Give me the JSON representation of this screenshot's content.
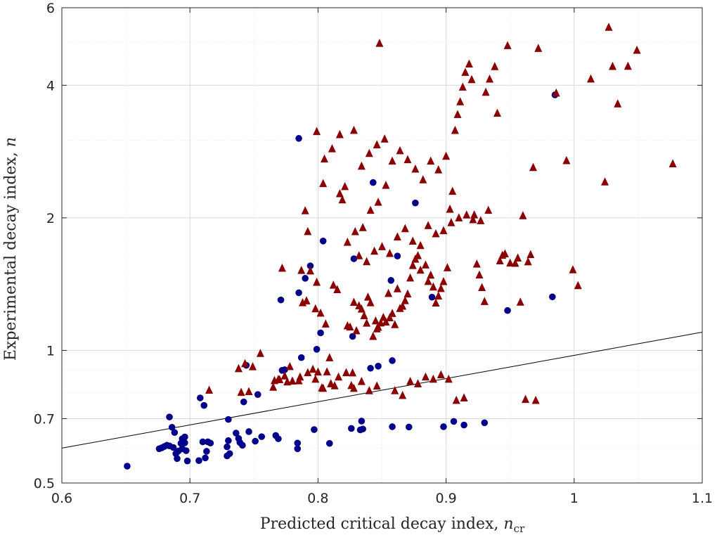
{
  "chart_data": {
    "type": "scatter",
    "title": "",
    "xlabel": "Predicted critical decay index, ",
    "xlabel_symbol": "n",
    "xlabel_subscript": "cr",
    "ylabel": "Experimental decay index, ",
    "ylabel_symbol": "n",
    "xlim": [
      0.6,
      1.1
    ],
    "ylim": [
      0.5,
      6
    ],
    "yscale": "log",
    "grid": true,
    "x_ticks": [
      0.6,
      0.7,
      0.8,
      0.9,
      1.0,
      1.1
    ],
    "x_tick_labels": [
      "0.6",
      "0.7",
      "0.8",
      "0.9",
      "1",
      "1.1"
    ],
    "y_ticks": [
      0.5,
      0.7,
      1,
      2,
      4,
      6
    ],
    "y_tick_labels": [
      "0.5",
      "0.7",
      "1",
      "2",
      "4",
      "6"
    ],
    "reference_line": {
      "x": [
        0.6,
        1.1
      ],
      "y": [
        0.6,
        1.1
      ],
      "color": "#000000"
    },
    "series": [
      {
        "marker": "circle",
        "color": "#00008b",
        "points": [
          [
            0.651,
            0.546
          ],
          [
            0.676,
            0.598
          ],
          [
            0.678,
            0.601
          ],
          [
            0.68,
            0.605
          ],
          [
            0.682,
            0.609
          ],
          [
            0.684,
            0.607
          ],
          [
            0.684,
            0.706
          ],
          [
            0.686,
            0.669
          ],
          [
            0.687,
            0.602
          ],
          [
            0.688,
            0.651
          ],
          [
            0.689,
            0.583
          ],
          [
            0.69,
            0.568
          ],
          [
            0.691,
            0.591
          ],
          [
            0.693,
            0.615
          ],
          [
            0.694,
            0.598
          ],
          [
            0.694,
            0.63
          ],
          [
            0.696,
            0.636
          ],
          [
            0.696,
            0.617
          ],
          [
            0.697,
            0.592
          ],
          [
            0.698,
            0.561
          ],
          [
            0.707,
            0.562
          ],
          [
            0.708,
            0.78
          ],
          [
            0.71,
            0.62
          ],
          [
            0.711,
            0.75
          ],
          [
            0.712,
            0.57
          ],
          [
            0.713,
            0.59
          ],
          [
            0.714,
            0.62
          ],
          [
            0.716,
            0.616
          ],
          [
            0.729,
            0.576
          ],
          [
            0.729,
            0.604
          ],
          [
            0.73,
            0.697
          ],
          [
            0.73,
            0.624
          ],
          [
            0.731,
            0.583
          ],
          [
            0.736,
            0.649
          ],
          [
            0.738,
            0.631
          ],
          [
            0.739,
            0.618
          ],
          [
            0.741,
            0.609
          ],
          [
            0.742,
            0.764
          ],
          [
            0.744,
            0.925
          ],
          [
            0.746,
            0.654
          ],
          [
            0.751,
            0.622
          ],
          [
            0.753,
            0.794
          ],
          [
            0.756,
            0.637
          ],
          [
            0.767,
            0.641
          ],
          [
            0.769,
            0.63
          ],
          [
            0.771,
            1.302
          ],
          [
            0.772,
            0.901
          ],
          [
            0.774,
            0.904
          ],
          [
            0.784,
            0.616
          ],
          [
            0.784,
            0.598
          ],
          [
            0.785,
            1.352
          ],
          [
            0.785,
            3.03
          ],
          [
            0.787,
            0.963
          ],
          [
            0.79,
            1.458
          ],
          [
            0.794,
            1.556
          ],
          [
            0.797,
            0.661
          ],
          [
            0.799,
            1.006
          ],
          [
            0.802,
            1.096
          ],
          [
            0.804,
            1.772
          ],
          [
            0.809,
            0.615
          ],
          [
            0.826,
            0.665
          ],
          [
            0.827,
            1.076
          ],
          [
            0.828,
            1.615
          ],
          [
            0.833,
            0.66
          ],
          [
            0.834,
            0.691
          ],
          [
            0.835,
            0.663
          ],
          [
            0.841,
            0.911
          ],
          [
            0.843,
            2.406
          ],
          [
            0.847,
            0.921
          ],
          [
            0.857,
            1.442
          ],
          [
            0.858,
            0.671
          ],
          [
            0.858,
            0.948
          ],
          [
            0.862,
            1.638
          ],
          [
            0.871,
            0.67
          ],
          [
            0.876,
            2.162
          ],
          [
            0.889,
            1.321
          ],
          [
            0.898,
            0.671
          ],
          [
            0.906,
            0.69
          ],
          [
            0.914,
            0.677
          ],
          [
            0.93,
            0.685
          ],
          [
            0.948,
            1.232
          ],
          [
            0.983,
            1.323
          ],
          [
            0.985,
            3.804
          ]
        ]
      },
      {
        "marker": "triangle",
        "color": "#8b0000",
        "points": [
          [
            0.715,
            0.812
          ],
          [
            0.738,
            0.909
          ],
          [
            0.74,
            0.803
          ],
          [
            0.743,
            0.933
          ],
          [
            0.746,
            0.806
          ],
          [
            0.749,
            0.918
          ],
          [
            0.755,
            0.984
          ],
          [
            0.765,
            0.825
          ],
          [
            0.766,
            0.854
          ],
          [
            0.769,
            0.859
          ],
          [
            0.77,
            0.858
          ],
          [
            0.772,
            1.537
          ],
          [
            0.774,
            0.875
          ],
          [
            0.776,
            0.848
          ],
          [
            0.778,
            0.919
          ],
          [
            0.78,
            0.852
          ],
          [
            0.785,
            0.853
          ],
          [
            0.787,
            1.519
          ],
          [
            0.788,
            1.283
          ],
          [
            0.79,
            2.075
          ],
          [
            0.791,
            1.296
          ],
          [
            0.792,
            1.861
          ],
          [
            0.794,
            1.515
          ],
          [
            0.796,
            0.906
          ],
          [
            0.798,
            1.243
          ],
          [
            0.799,
            1.428
          ],
          [
            0.8,
            0.893
          ],
          [
            0.802,
            1.215
          ],
          [
            0.803,
            0.822
          ],
          [
            0.804,
            2.392
          ],
          [
            0.806,
            1.148
          ],
          [
            0.807,
            0.894
          ],
          [
            0.809,
            0.962
          ],
          [
            0.812,
            1.406
          ],
          [
            0.813,
            0.831
          ],
          [
            0.815,
            1.374
          ],
          [
            0.817,
            2.269
          ],
          [
            0.819,
            2.197
          ],
          [
            0.821,
            2.355
          ],
          [
            0.823,
            1.137
          ],
          [
            0.825,
            1.13
          ],
          [
            0.826,
            0.832
          ],
          [
            0.827,
            0.889
          ],
          [
            0.828,
            1.286
          ],
          [
            0.83,
            1.108
          ],
          [
            0.832,
            1.263
          ],
          [
            0.834,
            1.241
          ],
          [
            0.836,
            1.199
          ],
          [
            0.838,
            1.153
          ],
          [
            0.839,
            1.321
          ],
          [
            0.841,
            1.283
          ],
          [
            0.843,
            1.076
          ],
          [
            0.845,
            1.167
          ],
          [
            0.846,
            1.119
          ],
          [
            0.847,
            1.129
          ],
          [
            0.849,
            1.154
          ],
          [
            0.851,
            1.188
          ],
          [
            0.853,
            1.16
          ],
          [
            0.855,
            1.347
          ],
          [
            0.856,
            1.186
          ],
          [
            0.858,
            1.213
          ],
          [
            0.86,
            1.144
          ],
          [
            0.862,
            1.38
          ],
          [
            0.864,
            1.245
          ],
          [
            0.866,
            1.26
          ],
          [
            0.868,
            1.297
          ],
          [
            0.87,
            1.343
          ],
          [
            0.872,
            1.46
          ],
          [
            0.874,
            1.559
          ],
          [
            0.876,
            1.611
          ],
          [
            0.878,
            1.641
          ],
          [
            0.88,
            1.521
          ],
          [
            0.884,
            1.563
          ],
          [
            0.886,
            1.434
          ],
          [
            0.888,
            1.482
          ],
          [
            0.89,
            1.393
          ],
          [
            0.892,
            1.281
          ],
          [
            0.894,
            1.329
          ],
          [
            0.896,
            1.382
          ],
          [
            0.898,
            1.433
          ],
          [
            0.901,
            1.54
          ],
          [
            0.903,
            2.092
          ],
          [
            0.905,
            2.297
          ],
          [
            0.907,
            3.159
          ],
          [
            0.909,
            3.432
          ],
          [
            0.911,
            3.669
          ],
          [
            0.913,
            3.961
          ],
          [
            0.915,
            4.279
          ],
          [
            0.918,
            4.47
          ],
          [
            0.92,
            4.12
          ],
          [
            0.922,
            2.031
          ],
          [
            0.924,
            1.57
          ],
          [
            0.926,
            1.483
          ],
          [
            0.928,
            1.389
          ],
          [
            0.93,
            1.291
          ],
          [
            0.931,
            3.856
          ],
          [
            0.934,
            4.13
          ],
          [
            0.938,
            4.41
          ],
          [
            0.94,
            3.456
          ],
          [
            0.942,
            1.597
          ],
          [
            0.944,
            1.644
          ],
          [
            0.946,
            1.657
          ],
          [
            0.948,
            4.92
          ],
          [
            0.95,
            1.579
          ],
          [
            0.954,
            1.577
          ],
          [
            0.956,
            1.621
          ],
          [
            0.958,
            1.287
          ],
          [
            0.96,
            2.022
          ],
          [
            0.962,
            0.774
          ],
          [
            0.964,
            1.589
          ],
          [
            0.966,
            1.65
          ],
          [
            0.968,
            2.602
          ],
          [
            0.97,
            0.77
          ],
          [
            0.972,
            4.85
          ],
          [
            0.986,
            3.84
          ],
          [
            0.994,
            2.697
          ],
          [
            0.999,
            1.524
          ],
          [
            1.003,
            1.403
          ],
          [
            1.013,
            4.133
          ],
          [
            1.024,
            2.413
          ],
          [
            1.027,
            5.416
          ],
          [
            1.03,
            4.414
          ],
          [
            1.034,
            3.629
          ],
          [
            1.042,
            4.418
          ],
          [
            1.049,
            4.803
          ],
          [
            1.077,
            2.653
          ],
          [
            0.828,
            3.16
          ],
          [
            0.834,
            2.62
          ],
          [
            0.84,
            2.8
          ],
          [
            0.846,
            2.93
          ],
          [
            0.852,
            3.02
          ],
          [
            0.858,
            2.69
          ],
          [
            0.864,
            2.84
          ],
          [
            0.87,
            2.71
          ],
          [
            0.876,
            2.58
          ],
          [
            0.882,
            2.44
          ],
          [
            0.888,
            2.69
          ],
          [
            0.894,
            2.57
          ],
          [
            0.9,
            2.76
          ],
          [
            0.817,
            3.09
          ],
          [
            0.811,
            2.87
          ],
          [
            0.805,
            2.72
          ],
          [
            0.799,
            3.14
          ],
          [
            0.848,
            4.98
          ],
          [
            0.853,
            2.37
          ],
          [
            0.847,
            2.17
          ],
          [
            0.841,
            2.08
          ],
          [
            0.835,
            1.9
          ],
          [
            0.829,
            1.86
          ],
          [
            0.823,
            1.76
          ],
          [
            0.832,
            1.64
          ],
          [
            0.838,
            1.59
          ],
          [
            0.844,
            1.68
          ],
          [
            0.85,
            1.72
          ],
          [
            0.856,
            1.66
          ],
          [
            0.862,
            1.81
          ],
          [
            0.868,
            1.89
          ],
          [
            0.874,
            1.77
          ],
          [
            0.88,
            1.73
          ],
          [
            0.886,
            1.92
          ],
          [
            0.892,
            1.84
          ],
          [
            0.898,
            1.87
          ],
          [
            0.904,
            1.95
          ],
          [
            0.91,
            2.0
          ],
          [
            0.916,
            2.03
          ],
          [
            0.921,
            1.98
          ],
          [
            0.927,
            1.97
          ],
          [
            0.933,
            2.08
          ],
          [
            0.86,
            0.81
          ],
          [
            0.866,
            0.79
          ],
          [
            0.872,
            0.85
          ],
          [
            0.878,
            0.84
          ],
          [
            0.884,
            0.87
          ],
          [
            0.89,
            0.86
          ],
          [
            0.896,
            0.88
          ],
          [
            0.902,
            0.86
          ],
          [
            0.908,
            0.77
          ],
          [
            0.914,
            0.78
          ],
          [
            0.846,
            0.83
          ],
          [
            0.84,
            0.81
          ],
          [
            0.834,
            0.85
          ],
          [
            0.828,
            0.82
          ],
          [
            0.822,
            0.89
          ],
          [
            0.816,
            0.87
          ],
          [
            0.81,
            0.84
          ],
          [
            0.804,
            0.82
          ],
          [
            0.798,
            0.86
          ],
          [
            0.792,
            0.89
          ],
          [
            0.786,
            0.87
          ]
        ]
      }
    ]
  }
}
